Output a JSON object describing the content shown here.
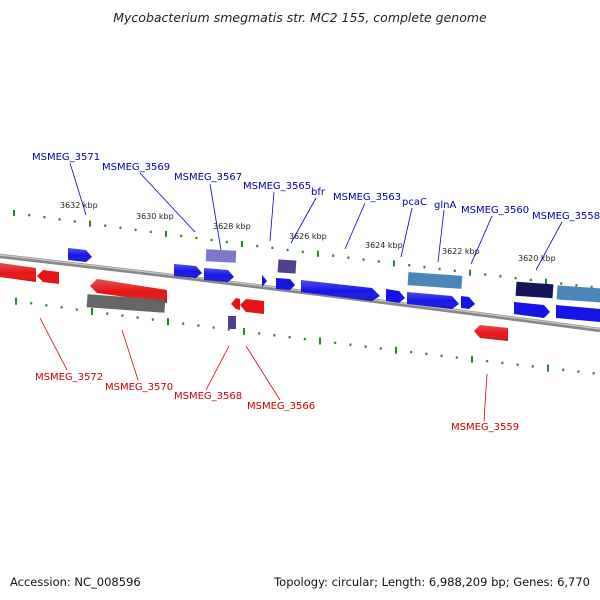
{
  "title": "Mycobacterium smegmatis str. MC2 155, complete genome",
  "footer": {
    "accession": "Accession: NC_008596",
    "summary": "Topology: circular; Length: 6,988,209 bp; Genes: 6,770"
  },
  "colors": {
    "forward_gene": "#1414e6",
    "reverse_gene": "#e61414",
    "forward_label": "#0000aa",
    "reverse_label": "#cc0000",
    "backbone": "#888888",
    "tick": "#228822",
    "feature_light_blue": "#4a86b8",
    "feature_lavender": "#7f77cc",
    "feature_purple": "#544090",
    "feature_navy": "#14145a",
    "feature_gray": "#666666"
  },
  "scale_ticks": [
    "3632 kbp",
    "3630 kbp",
    "3628 kbp",
    "3626 kbp",
    "3624 kbp",
    "3622 kbp",
    "3620 kbp"
  ],
  "forward_labels": [
    "MSMEG_3571",
    "MSMEG_3569",
    "MSMEG_3567",
    "MSMEG_3565",
    "bfr",
    "MSMEG_3563",
    "pcaC",
    "glnA",
    "MSMEG_3560",
    "MSMEG_3558"
  ],
  "reverse_labels": [
    "MSMEG_3572",
    "MSMEG_3570",
    "MSMEG_3568",
    "MSMEG_3566",
    "MSMEG_3559"
  ]
}
